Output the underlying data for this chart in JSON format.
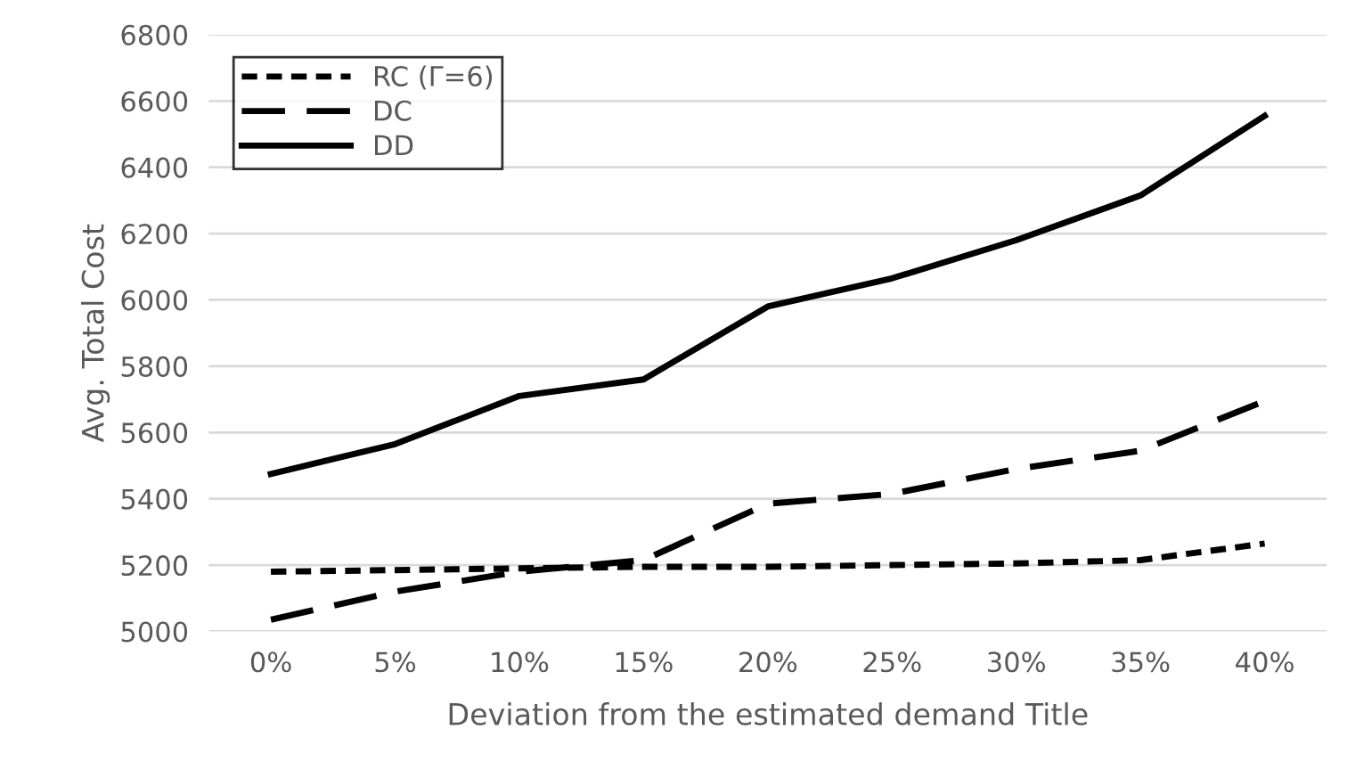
{
  "chart_data": {
    "type": "line",
    "xlabel": "Deviation from the estimated demand Title",
    "ylabel": "Avg. Total Cost",
    "categories": [
      "0%",
      "5%",
      "10%",
      "15%",
      "20%",
      "25%",
      "30%",
      "35%",
      "40%"
    ],
    "series": [
      {
        "name": "RC (Γ=6)",
        "color": "#000000",
        "line_style": "dotted",
        "values": [
          5180,
          5185,
          5190,
          5195,
          5195,
          5200,
          5205,
          5215,
          5265
        ]
      },
      {
        "name": "DC",
        "color": "#000000",
        "line_style": "dashed",
        "values": [
          5035,
          5120,
          5180,
          5215,
          5385,
          5415,
          5490,
          5545,
          5695
        ]
      },
      {
        "name": "DD",
        "color": "#000000",
        "line_style": "solid",
        "values": [
          5475,
          5565,
          5710,
          5760,
          5980,
          6065,
          6180,
          6315,
          6555
        ]
      }
    ],
    "ylim": [
      5000,
      6800
    ],
    "yticks": [
      5000,
      5200,
      5400,
      5600,
      5800,
      6000,
      6200,
      6400,
      6600,
      6800
    ],
    "grid": "y",
    "legend": "top left"
  }
}
